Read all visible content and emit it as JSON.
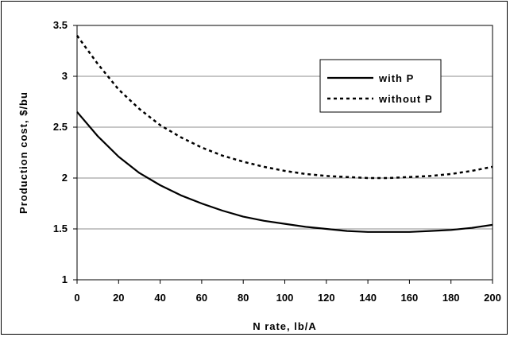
{
  "chart_data": {
    "type": "line",
    "title": "",
    "xlabel": "N rate, lb/A",
    "ylabel": "Production cost, $/bu",
    "xlim": [
      0,
      200
    ],
    "ylim": [
      1,
      3.5
    ],
    "xticks": [
      0,
      20,
      40,
      60,
      80,
      100,
      120,
      140,
      160,
      180,
      200
    ],
    "yticks": [
      1,
      1.5,
      2,
      2.5,
      3,
      3.5
    ],
    "ytick_labels": [
      "1",
      "1.5",
      "2",
      "2.5",
      "3",
      "3.5"
    ],
    "grid": "horizontal",
    "legend_position": "top-right",
    "series": [
      {
        "name": "with P",
        "line_style": "solid",
        "color": "#000000",
        "x": [
          0,
          10,
          20,
          30,
          40,
          50,
          60,
          70,
          80,
          90,
          100,
          110,
          120,
          130,
          140,
          150,
          160,
          170,
          180,
          190,
          200
        ],
        "y": [
          2.65,
          2.41,
          2.21,
          2.05,
          1.93,
          1.83,
          1.75,
          1.68,
          1.62,
          1.58,
          1.55,
          1.52,
          1.5,
          1.48,
          1.47,
          1.47,
          1.47,
          1.48,
          1.49,
          1.51,
          1.54
        ]
      },
      {
        "name": "without P",
        "line_style": "dotted",
        "color": "#000000",
        "x": [
          0,
          10,
          20,
          30,
          40,
          50,
          60,
          70,
          80,
          90,
          100,
          110,
          120,
          130,
          140,
          150,
          160,
          170,
          180,
          190,
          200
        ],
        "y": [
          3.4,
          3.12,
          2.87,
          2.68,
          2.52,
          2.4,
          2.3,
          2.22,
          2.16,
          2.11,
          2.07,
          2.04,
          2.02,
          2.01,
          2.0,
          2.0,
          2.01,
          2.02,
          2.04,
          2.07,
          2.11
        ]
      }
    ]
  }
}
